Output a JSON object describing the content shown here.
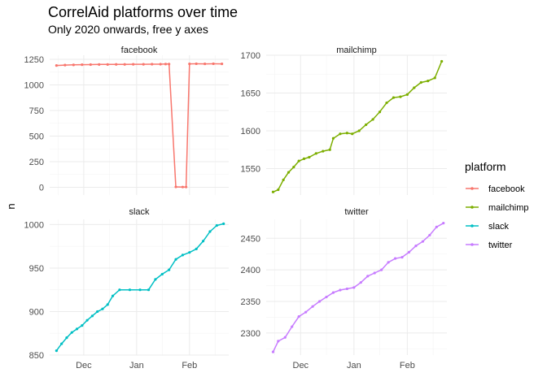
{
  "chart_data": {
    "type": "line",
    "title": "CorrelAid platforms over time",
    "subtitle": "Only 2020 onwards, free y axes",
    "ylabel": "n",
    "xlabel": "",
    "x_ticks": [
      "Dec",
      "Jan",
      "Feb"
    ],
    "grid": true,
    "legend_position": "right",
    "legend_title": "platform",
    "series_colors": {
      "facebook": "#F8766D",
      "mailchimp": "#7CAE00",
      "slack": "#00BFC4",
      "twitter": "#C77CFF"
    },
    "legend": [
      "facebook",
      "mailchimp",
      "slack",
      "twitter"
    ],
    "panels": [
      {
        "name": "facebook",
        "ylim": [
          -75,
          1290
        ],
        "yticks": [
          0,
          250,
          500,
          750,
          1000,
          1250
        ],
        "x": [
          "2019-11-15",
          "2019-11-20",
          "2019-11-25",
          "2019-11-30",
          "2019-12-05",
          "2019-12-10",
          "2019-12-15",
          "2019-12-20",
          "2019-12-25",
          "2019-12-30",
          "2020-01-05",
          "2020-01-10",
          "2020-01-15",
          "2020-01-18",
          "2020-01-20",
          "2020-01-24",
          "2020-01-28",
          "2020-01-30",
          "2020-02-01",
          "2020-02-05",
          "2020-02-10",
          "2020-02-15",
          "2020-02-20"
        ],
        "y": [
          1190,
          1194,
          1196,
          1198,
          1199,
          1200,
          1200,
          1201,
          1201,
          1202,
          1202,
          1203,
          1203,
          1204,
          1204,
          4,
          3,
          3,
          1206,
          1207,
          1206,
          1207,
          1206
        ]
      },
      {
        "name": "mailchimp",
        "ylim": [
          1515,
          1700
        ],
        "yticks": [
          1550,
          1600,
          1650,
          1700
        ],
        "x": [
          "2019-11-15",
          "2019-11-18",
          "2019-11-21",
          "2019-11-24",
          "2019-11-27",
          "2019-11-30",
          "2019-12-03",
          "2019-12-06",
          "2019-12-10",
          "2019-12-14",
          "2019-12-18",
          "2019-12-20",
          "2019-12-24",
          "2019-12-28",
          "2019-12-31",
          "2020-01-04",
          "2020-01-08",
          "2020-01-12",
          "2020-01-16",
          "2020-01-20",
          "2020-01-24",
          "2020-01-28",
          "2020-02-01",
          "2020-02-05",
          "2020-02-09",
          "2020-02-13",
          "2020-02-17",
          "2020-02-21"
        ],
        "y": [
          1519,
          1522,
          1535,
          1545,
          1552,
          1560,
          1563,
          1565,
          1570,
          1573,
          1575,
          1590,
          1596,
          1597,
          1596,
          1600,
          1608,
          1615,
          1625,
          1637,
          1644,
          1645,
          1648,
          1657,
          1664,
          1666,
          1670,
          1692
        ]
      },
      {
        "name": "slack",
        "ylim": [
          850,
          1006
        ],
        "yticks": [
          850,
          900,
          950,
          1000
        ],
        "x": [
          "2019-11-15",
          "2019-11-18",
          "2019-11-21",
          "2019-11-24",
          "2019-11-27",
          "2019-11-30",
          "2019-12-03",
          "2019-12-06",
          "2019-12-09",
          "2019-12-12",
          "2019-12-15",
          "2019-12-18",
          "2019-12-22",
          "2019-12-28",
          "2020-01-03",
          "2020-01-08",
          "2020-01-12",
          "2020-01-16",
          "2020-01-20",
          "2020-01-24",
          "2020-01-28",
          "2020-02-01",
          "2020-02-05",
          "2020-02-09",
          "2020-02-13",
          "2020-02-17",
          "2020-02-21"
        ],
        "y": [
          855,
          863,
          870,
          876,
          880,
          884,
          890,
          895,
          900,
          903,
          908,
          918,
          925,
          925,
          925,
          925,
          937,
          943,
          948,
          960,
          965,
          968,
          972,
          981,
          992,
          999,
          1001
        ]
      },
      {
        "name": "twitter",
        "ylim": [
          2265,
          2480
        ],
        "yticks": [
          2300,
          2350,
          2400,
          2450
        ],
        "x": [
          "2019-11-15",
          "2019-11-18",
          "2019-11-22",
          "2019-11-26",
          "2019-11-30",
          "2019-12-04",
          "2019-12-08",
          "2019-12-12",
          "2019-12-16",
          "2019-12-20",
          "2019-12-24",
          "2019-12-28",
          "2020-01-01",
          "2020-01-05",
          "2020-01-09",
          "2020-01-13",
          "2020-01-17",
          "2020-01-21",
          "2020-01-25",
          "2020-01-29",
          "2020-02-02",
          "2020-02-06",
          "2020-02-10",
          "2020-02-14",
          "2020-02-18",
          "2020-02-22"
        ],
        "y": [
          2270,
          2287,
          2293,
          2310,
          2326,
          2333,
          2342,
          2350,
          2357,
          2364,
          2368,
          2370,
          2372,
          2380,
          2390,
          2395,
          2400,
          2412,
          2418,
          2420,
          2428,
          2438,
          2445,
          2455,
          2468,
          2474
        ]
      }
    ]
  }
}
